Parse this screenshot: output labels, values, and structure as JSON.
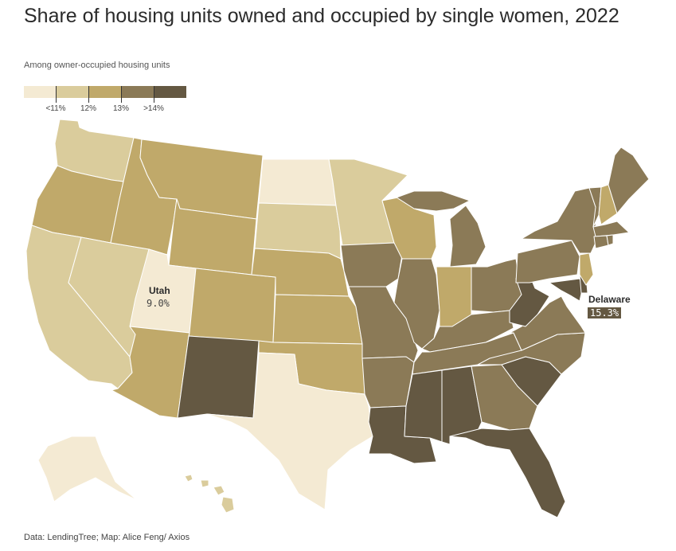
{
  "title": "Share of housing units owned and occupied by single women, 2022",
  "subtitle": "Among owner-occupied housing units",
  "source": "Data: LendingTree; Map: Alice Feng/ Axios",
  "legend": {
    "colors": [
      "#f4ead3",
      "#dacc9c",
      "#c0a96a",
      "#8b7a57",
      "#645842"
    ],
    "ticks": [
      "<11%",
      "12%",
      "13%",
      ">14%"
    ]
  },
  "callouts": {
    "utah": {
      "name": "Utah",
      "value": "9.0%"
    },
    "delaware": {
      "name": "Delaware",
      "value": "15.3%"
    }
  },
  "colors": {
    "c1": "#f4ead3",
    "c2": "#dacc9c",
    "c3": "#c0a96a",
    "c4": "#8b7a57",
    "c5": "#645842",
    "border": "#ffffff"
  }
}
